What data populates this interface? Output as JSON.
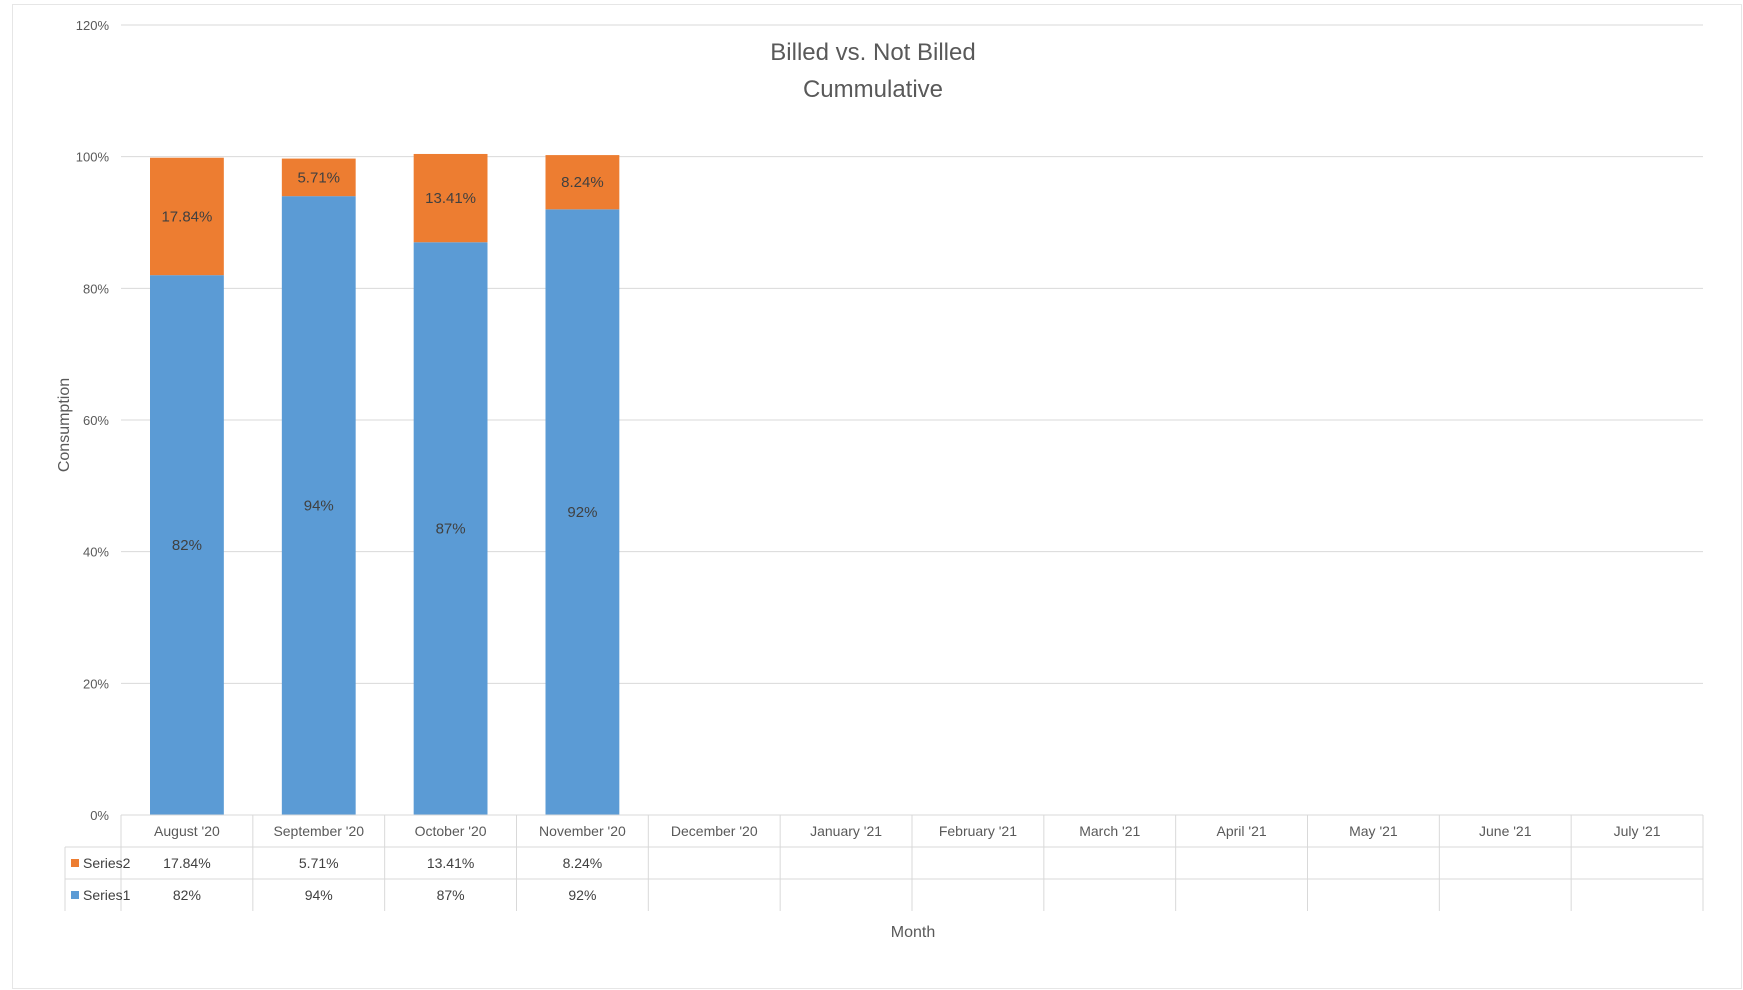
{
  "chart_data": {
    "type": "bar",
    "stacked": true,
    "title": "Billed vs. Not Billed",
    "subtitle": "Cummulative",
    "xlabel": "Month",
    "ylabel": "Consumption",
    "ylim": [
      0,
      1.2
    ],
    "y_ticks": [
      "0%",
      "20%",
      "40%",
      "60%",
      "80%",
      "100%",
      "120%"
    ],
    "grid": true,
    "legend": "data-table",
    "categories": [
      "August '20",
      "September '20",
      "October '20",
      "November '20",
      "December '20",
      "January '21",
      "February '21",
      "March '21",
      "April '21",
      "May '21",
      "June '21",
      "July '21"
    ],
    "series": [
      {
        "name": "Series1",
        "color": "#5b9bd5",
        "values": [
          0.82,
          0.94,
          0.87,
          0.92,
          null,
          null,
          null,
          null,
          null,
          null,
          null,
          null
        ],
        "labels": [
          "82%",
          "94%",
          "87%",
          "92%",
          "",
          "",
          "",
          "",
          "",
          "",
          "",
          ""
        ]
      },
      {
        "name": "Series2",
        "color": "#ed7d31",
        "values": [
          0.1784,
          0.0571,
          0.1341,
          0.0824,
          null,
          null,
          null,
          null,
          null,
          null,
          null,
          null
        ],
        "labels": [
          "17.84%",
          "5.71%",
          "13.41%",
          "8.24%",
          "",
          "",
          "",
          "",
          "",
          "",
          "",
          ""
        ]
      }
    ]
  }
}
